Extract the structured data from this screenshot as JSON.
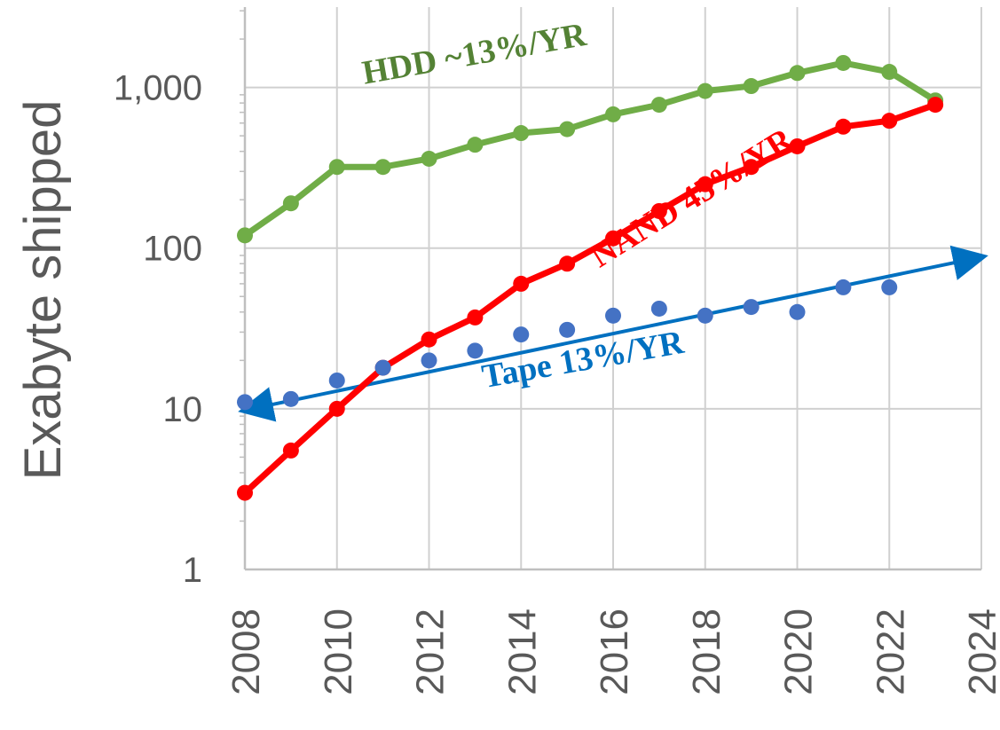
{
  "chart_data": {
    "type": "line",
    "ylabel": "Exabyte shipped",
    "xlabel": "",
    "yscale": "log",
    "ylim": [
      1,
      3000
    ],
    "xlim": [
      2008,
      2024
    ],
    "grid": true,
    "yticks": [
      {
        "value": 1,
        "label": "1"
      },
      {
        "value": 10,
        "label": "10"
      },
      {
        "value": 100,
        "label": "100"
      },
      {
        "value": 1000,
        "label": "1,000"
      }
    ],
    "xticks": [
      {
        "value": 2008,
        "label": "2008"
      },
      {
        "value": 2010,
        "label": "2010"
      },
      {
        "value": 2012,
        "label": "2012"
      },
      {
        "value": 2014,
        "label": "2014"
      },
      {
        "value": 2016,
        "label": "2016"
      },
      {
        "value": 2018,
        "label": "2018"
      },
      {
        "value": 2020,
        "label": "2020"
      },
      {
        "value": 2022,
        "label": "2022"
      },
      {
        "value": 2024,
        "label": "2024"
      }
    ],
    "series": [
      {
        "key": "hdd",
        "color": "#70ad47",
        "style": "line-markers",
        "x": [
          2008,
          2009,
          2010,
          2011,
          2012,
          2013,
          2014,
          2015,
          2016,
          2017,
          2018,
          2019,
          2020,
          2021,
          2022,
          2023
        ],
        "y": [
          120,
          190,
          320,
          320,
          360,
          440,
          520,
          550,
          680,
          780,
          950,
          1020,
          1230,
          1420,
          1250,
          830
        ]
      },
      {
        "key": "nand",
        "color": "#ff0000",
        "style": "line-markers",
        "x": [
          2008,
          2009,
          2010,
          2011,
          2012,
          2013,
          2014,
          2015,
          2016,
          2017,
          2018,
          2019,
          2020,
          2021,
          2022,
          2023
        ],
        "y": [
          3.0,
          5.5,
          10,
          18,
          27,
          37,
          60,
          80,
          115,
          170,
          250,
          320,
          430,
          570,
          620,
          780
        ]
      },
      {
        "key": "tape",
        "color": "#4472c4",
        "style": "markers",
        "x": [
          2008,
          2009,
          2010,
          2011,
          2012,
          2013,
          2014,
          2015,
          2016,
          2017,
          2018,
          2019,
          2020,
          2021,
          2022
        ],
        "y": [
          11,
          11.5,
          15,
          18,
          20,
          23,
          29,
          31,
          38,
          42,
          38,
          43,
          40,
          57,
          57
        ]
      }
    ],
    "trend_arrow": {
      "color": "#0070c0",
      "from": {
        "x": 2008,
        "y": 9.8
      },
      "to": {
        "x": 2024,
        "y": 88
      }
    },
    "annotations": [
      {
        "key": "hdd",
        "text": "HDD ~13%/YR",
        "color": "#548235",
        "x": 2010.6,
        "y": 1050,
        "rotation": -10
      },
      {
        "key": "nand",
        "text": "NAND 45%/YR",
        "color": "#ff0000",
        "x": 2015.7,
        "y": 75,
        "rotation": -32
      },
      {
        "key": "tape",
        "text": "Tape 13%/YR",
        "color": "#0070c0",
        "x": 2013.2,
        "y": 13.5,
        "rotation": -10
      }
    ]
  }
}
